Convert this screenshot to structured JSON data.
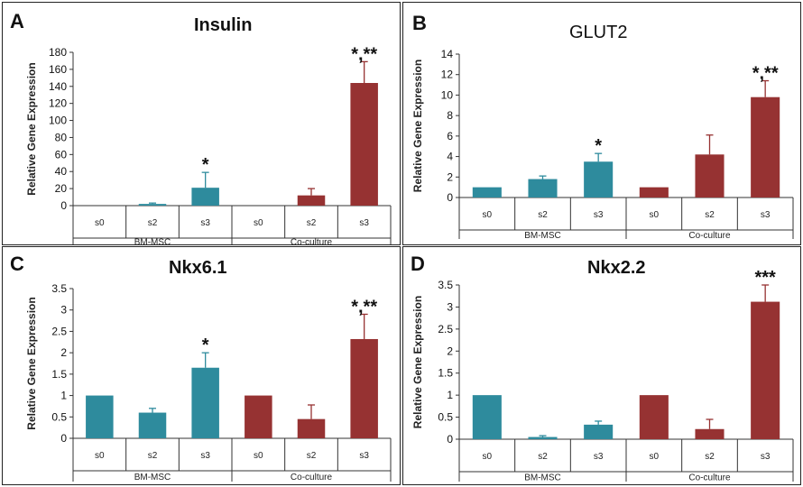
{
  "colors": {
    "bmmsc": "#2e8b9d",
    "coculture": "#963232"
  },
  "chart_data": [
    {
      "type": "bar",
      "letter": "A",
      "title": "Insulin",
      "ylabel": "Relative Gene Expression",
      "ylim": [
        0,
        180
      ],
      "yticks": [
        "0",
        "20",
        "40",
        "60",
        "80",
        "100",
        "120",
        "140",
        "160",
        "180"
      ],
      "tick_step": 20,
      "categories": [
        "s0",
        "s2",
        "s3",
        "s0",
        "s2",
        "s3"
      ],
      "groups": [
        "BM-MSC",
        "Co-culture"
      ],
      "values": [
        0,
        2,
        21,
        0,
        12,
        144
      ],
      "errors": [
        0,
        1,
        18,
        0,
        8,
        25
      ],
      "significance": [
        "",
        "",
        "*",
        "",
        "",
        "*,**"
      ]
    },
    {
      "type": "bar",
      "letter": "B",
      "title": "GLUT2",
      "ylabel": "Relative Gene Expression",
      "ylim": [
        0,
        14
      ],
      "yticks": [
        "0",
        "2",
        "4",
        "6",
        "8",
        "10",
        "12",
        "14"
      ],
      "tick_step": 2,
      "categories": [
        "s0",
        "s2",
        "s3",
        "s0",
        "s2",
        "s3"
      ],
      "groups": [
        "BM-MSC",
        "Co-culture"
      ],
      "values": [
        1,
        1.8,
        3.5,
        1,
        4.2,
        9.8
      ],
      "errors": [
        0,
        0.3,
        0.8,
        0,
        1.9,
        1.6
      ],
      "significance": [
        "",
        "",
        "*",
        "",
        "",
        "*,**"
      ]
    },
    {
      "type": "bar",
      "letter": "C",
      "title": "Nkx6.1",
      "ylabel": "Relative Gene Expression",
      "ylim": [
        0,
        3.5
      ],
      "yticks": [
        "0",
        "0.5",
        "1",
        "1.5",
        "2",
        "2.5",
        "3",
        "3.5"
      ],
      "tick_step": 0.5,
      "categories": [
        "s0",
        "s2",
        "s3",
        "s0",
        "s2",
        "s3"
      ],
      "groups": [
        "BM-MSC",
        "Co-culture"
      ],
      "values": [
        1,
        0.6,
        1.65,
        1,
        0.45,
        2.32
      ],
      "errors": [
        0,
        0.1,
        0.35,
        0,
        0.33,
        0.58
      ],
      "significance": [
        "",
        "",
        "*",
        "",
        "",
        "*,**"
      ]
    },
    {
      "type": "bar",
      "letter": "D",
      "title": "Nkx2.2",
      "ylabel": "Relative Gene Expression",
      "ylim": [
        0,
        3.5
      ],
      "yticks": [
        "0",
        "0.5",
        "1",
        "1.5",
        "2",
        "2.5",
        "3",
        "3.5"
      ],
      "tick_step": 0.5,
      "categories": [
        "s0",
        "s2",
        "s3",
        "s0",
        "s2",
        "s3"
      ],
      "groups": [
        "BM-MSC",
        "Co-culture"
      ],
      "values": [
        1,
        0.05,
        0.33,
        1,
        0.23,
        3.12
      ],
      "errors": [
        0,
        0.03,
        0.08,
        0,
        0.22,
        0.38
      ],
      "significance": [
        "",
        "",
        "",
        "",
        "",
        "***"
      ]
    }
  ]
}
